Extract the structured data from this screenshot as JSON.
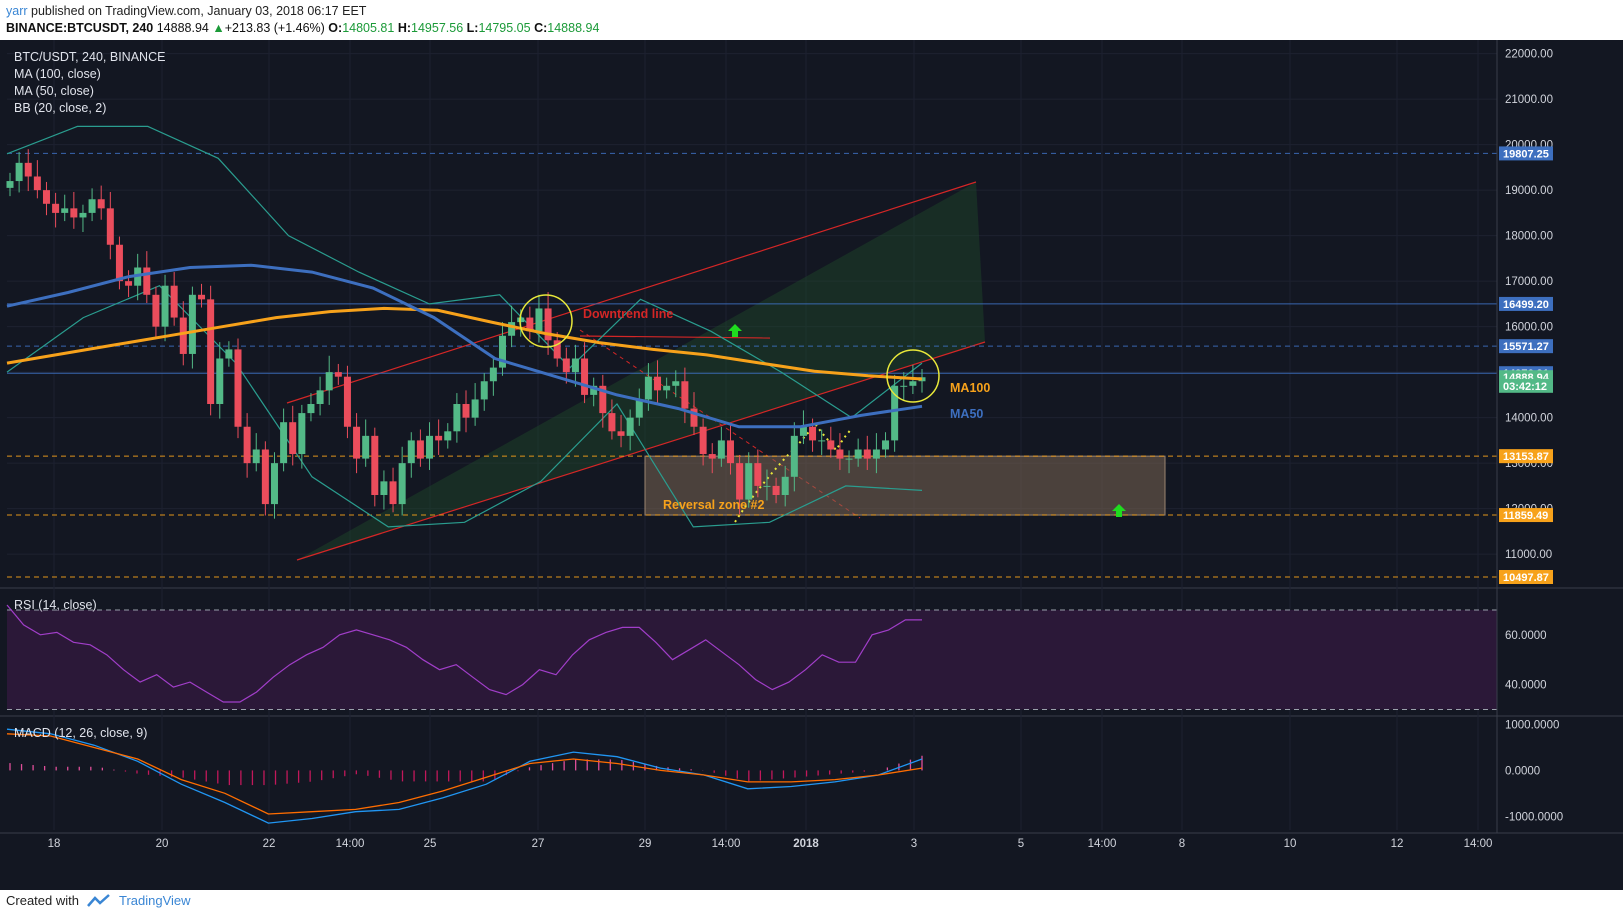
{
  "header": {
    "user": "yarr",
    "published_text": "published on TradingView.com, January 03, 2018 06:17 EET",
    "symbol": "BINANCE:BTCUSDT, 240",
    "last": "14888.94",
    "change": "+213.83 (+1.46%)",
    "o_label": "O:",
    "o_value": "14805.81",
    "h_label": "H:",
    "h_value": "14957.56",
    "l_label": "L:",
    "l_value": "14795.05",
    "c_label": "C:",
    "c_value": "14888.94"
  },
  "legend": {
    "title": "BTC/USDT, 240, BINANCE",
    "ma100": "MA (100, close)",
    "ma50": "MA (50, close)",
    "bb": "BB (20, close, 2)",
    "rsi": "RSI (14, close)",
    "macd": "MACD (12, 26, close, 9)"
  },
  "footer": {
    "created_with": "Created with",
    "brand": "TradingView"
  },
  "colors": {
    "background": "#131722",
    "up": "#53b987",
    "down": "#eb4d5c",
    "ma100": "#f7a21b",
    "ma50": "#3d6fbf",
    "bb": "#2a9d8f",
    "rsi": "#a13ec9",
    "macd": "#2196f3",
    "signal": "#ff6d00",
    "trend": "#d42626",
    "zone_line": "#f7a21b"
  },
  "annotations": {
    "downtrend": "Downtrend line",
    "reversal": "Reversal zone #2",
    "ma100": "MA100",
    "ma50": "MA50"
  },
  "chart_data": [
    {
      "type": "candlestick",
      "title": "BTC/USDT, 240, BINANCE",
      "ylim": [
        10300,
        22300
      ],
      "y_ticks": [
        "22000.00",
        "21000.00",
        "20000.00",
        "19000.00",
        "18000.00",
        "17000.00",
        "16000.00",
        "15000.00",
        "14000.00",
        "13000.00",
        "12000.00",
        "11000.00"
      ],
      "x_ticks": [
        "18",
        "20",
        "22",
        "14:00",
        "25",
        "27",
        "29",
        "14:00",
        "2018",
        "3",
        "5",
        "14:00",
        "8",
        "10",
        "12",
        "14:00"
      ],
      "price_tags": [
        {
          "value": 19807.25,
          "label": "19807.25",
          "color": "#3d6fbf"
        },
        {
          "value": 16499.2,
          "label": "16499.20",
          "color": "#3d6fbf"
        },
        {
          "value": 15571.27,
          "label": "15571.27",
          "color": "#3d6fbf"
        },
        {
          "value": 14976.91,
          "label": "14976.91",
          "color": "#3d6fbf"
        },
        {
          "value": 14888.94,
          "label": "14888.94",
          "color": "#53b987"
        },
        {
          "value": 14700,
          "label": "03:42:12",
          "color": "#53b987"
        },
        {
          "value": 13153.87,
          "label": "13153.87",
          "color": "#f7a21b"
        },
        {
          "value": 11859.49,
          "label": "11859.49",
          "color": "#f7a21b"
        },
        {
          "value": 10497.87,
          "label": "10497.87",
          "color": "#f7a21b"
        }
      ],
      "closes": [
        19200,
        19600,
        19300,
        19000,
        18700,
        18500,
        18600,
        18400,
        18500,
        18800,
        18600,
        17800,
        17000,
        16900,
        17300,
        16700,
        16000,
        16900,
        16200,
        15400,
        16700,
        16600,
        14300,
        15300,
        15500,
        13800,
        13000,
        13300,
        12100,
        13000,
        13900,
        13200,
        14100,
        14300,
        14600,
        15000,
        14900,
        13800,
        13100,
        13600,
        12300,
        12600,
        12100,
        13000,
        13500,
        13100,
        13600,
        13500,
        13700,
        14300,
        14000,
        14400,
        14800,
        15100,
        15800,
        16100,
        16200,
        15900,
        16400,
        15700,
        15300,
        15000,
        15300,
        14500,
        14700,
        14100,
        13700,
        13600,
        14000,
        14400,
        14900,
        14600,
        14700,
        14800,
        14200,
        13800,
        13200,
        13100,
        13500,
        13000,
        12200,
        13000,
        12500,
        12500,
        12300,
        12700,
        13600,
        13800,
        13500,
        13500,
        13300,
        13100,
        13100,
        13300,
        13100,
        13300,
        13500,
        14700,
        14700,
        14800,
        14888
      ],
      "ma100": [
        15200,
        15400,
        15600,
        15800,
        16000,
        16200,
        16330,
        16400,
        16360,
        16100,
        15850,
        15650,
        15500,
        15380,
        15200,
        15020,
        14920,
        14850
      ],
      "ma50": [
        16450,
        16750,
        17100,
        17300,
        17350,
        17200,
        16850,
        16200,
        15300,
        14900,
        14500,
        14200,
        13800,
        13800,
        14050,
        14250
      ],
      "bb_upper": [
        19800,
        20400,
        20400,
        19700,
        18000,
        17200,
        16500,
        16700,
        15100,
        16600,
        15900,
        15000,
        14000,
        15200
      ],
      "bb_lower": [
        15000,
        16200,
        16900,
        15200,
        12700,
        11600,
        11700,
        12600,
        14300,
        11600,
        11700,
        12500,
        12400
      ],
      "trend_upper": [
        [
          11300,
          15000
        ],
        [
          19250,
          15000
        ]
      ],
      "zone": {
        "top": 13153.87,
        "bottom": 11859.49
      }
    },
    {
      "type": "line",
      "title": "RSI (14, close)",
      "ylim": [
        29,
        74
      ],
      "y_ticks": [
        "60.0000",
        "40.0000"
      ],
      "levels": [
        70,
        30
      ],
      "values": [
        72,
        64,
        60,
        61,
        57,
        56,
        52,
        46,
        41,
        44,
        39,
        41,
        37,
        33,
        33,
        37,
        43,
        48,
        52,
        55,
        60,
        62,
        60,
        58,
        55,
        50,
        46,
        48,
        43,
        38,
        36,
        40,
        46,
        44,
        52,
        58,
        61,
        63,
        63,
        57,
        50,
        54,
        58,
        53,
        48,
        42,
        38,
        41,
        46,
        52,
        49,
        49,
        60,
        62,
        66,
        66
      ]
    },
    {
      "type": "line",
      "title": "MACD (12, 26, close, 9)",
      "ylim": [
        -1300,
        1100
      ],
      "y_ticks": [
        "1000.0000",
        "0.0000",
        "-1000.0000"
      ],
      "macd": [
        900,
        800,
        550,
        200,
        -300,
        -700,
        -1150,
        -1050,
        -900,
        -850,
        -600,
        -300,
        200,
        400,
        300,
        50,
        -100,
        -400,
        -350,
        -250,
        -100,
        250
      ],
      "signal": [
        800,
        750,
        500,
        250,
        -200,
        -500,
        -950,
        -900,
        -850,
        -700,
        -450,
        -150,
        150,
        250,
        150,
        0,
        -100,
        -250,
        -250,
        -200,
        -100,
        50
      ]
    }
  ]
}
